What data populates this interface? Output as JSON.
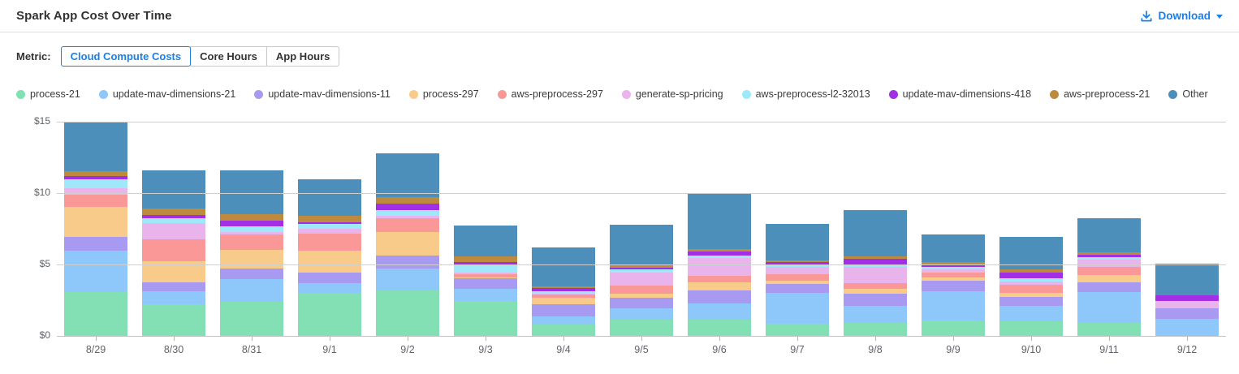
{
  "header": {
    "title": "Spark App Cost Over Time",
    "download_label": "Download"
  },
  "metric": {
    "label": "Metric:",
    "options": [
      {
        "label": "Cloud Compute Costs",
        "selected": true
      },
      {
        "label": "Core Hours",
        "selected": false
      },
      {
        "label": "App Hours",
        "selected": false
      }
    ]
  },
  "colors": {
    "accent": "#1c7fe8",
    "text": "#333333",
    "axis_text": "#5f6368",
    "gridline": "#cfcfcf",
    "divider": "#dedede"
  },
  "chart_data": {
    "type": "bar",
    "stacked": true,
    "title": "Spark App Cost Over Time",
    "xlabel": "",
    "ylabel": "",
    "ylim": [
      0,
      15
    ],
    "grid": true,
    "legend_position": "top",
    "y_ticks": [
      {
        "value": 0,
        "label": "$0"
      },
      {
        "value": 5,
        "label": "$5"
      },
      {
        "value": 10,
        "label": "$10"
      },
      {
        "value": 15,
        "label": "$15"
      }
    ],
    "categories": [
      "8/29",
      "8/30",
      "8/31",
      "9/1",
      "9/2",
      "9/3",
      "9/4",
      "9/5",
      "9/6",
      "9/7",
      "9/8",
      "9/9",
      "9/10",
      "9/11",
      "9/12"
    ],
    "series": [
      {
        "name": "process-21",
        "color": "#82e0b4",
        "values": [
          3.05,
          2.23,
          2.4,
          3.0,
          3.17,
          2.47,
          0.77,
          1.11,
          1.15,
          0.87,
          0.92,
          1.06,
          1.0,
          0.92,
          0
        ]
      },
      {
        "name": "update-mav-dimensions-21",
        "color": "#8ec7f9",
        "values": [
          2.91,
          0.91,
          1.57,
          0.7,
          1.57,
          0.85,
          0.57,
          0.81,
          1.1,
          2.17,
          1.21,
          2.07,
          1.13,
          2.16,
          1.19
        ]
      },
      {
        "name": "update-mav-dimensions-11",
        "color": "#a89af1",
        "values": [
          1.0,
          0.6,
          0.72,
          0.76,
          0.88,
          0.7,
          0.89,
          0.74,
          0.94,
          0.62,
          0.85,
          0.76,
          0.62,
          0.66,
          0.75
        ]
      },
      {
        "name": "process-297",
        "color": "#f8cb8b",
        "values": [
          2.05,
          1.47,
          1.36,
          1.51,
          1.63,
          0.1,
          0.43,
          0.28,
          0.55,
          0.23,
          0.3,
          0.22,
          0.29,
          0.52,
          0
        ]
      },
      {
        "name": "aws-preprocess-297",
        "color": "#fa9897",
        "values": [
          0.89,
          1.55,
          1.04,
          1.19,
          0.98,
          0.2,
          0.23,
          0.57,
          0.49,
          0.41,
          0.42,
          0.34,
          0.56,
          0.57,
          0
        ]
      },
      {
        "name": "generate-sp-pricing",
        "color": "#e9b4ec",
        "values": [
          0.44,
          1.13,
          0.19,
          0.32,
          0.19,
          0.13,
          0.09,
          0.91,
          1.2,
          0.53,
          1.13,
          0.19,
          0.19,
          0.51,
          0.53
        ]
      },
      {
        "name": "aws-preprocess-l2-32013",
        "color": "#9ee8fa",
        "values": [
          0.62,
          0.37,
          0.38,
          0.34,
          0.37,
          0.58,
          0.13,
          0.22,
          0.19,
          0.15,
          0.15,
          0.19,
          0.23,
          0.19,
          0
        ]
      },
      {
        "name": "update-mav-dimensions-418",
        "color": "#a22ee6",
        "values": [
          0.26,
          0.19,
          0.42,
          0.13,
          0.47,
          0.13,
          0.25,
          0.15,
          0.3,
          0.17,
          0.42,
          0.19,
          0.4,
          0.15,
          0.38
        ]
      },
      {
        "name": "aws-preprocess-21",
        "color": "#be8b3e",
        "values": [
          0.34,
          0.47,
          0.43,
          0.44,
          0.48,
          0.44,
          0.13,
          0.19,
          0.19,
          0.15,
          0.18,
          0.15,
          0.22,
          0.19,
          0
        ]
      },
      {
        "name": "Other",
        "color": "#4d8fbb",
        "values": [
          3.44,
          2.66,
          3.07,
          2.58,
          3.05,
          2.15,
          2.72,
          2.83,
          3.87,
          2.55,
          3.25,
          1.92,
          2.27,
          2.39,
          2.2
        ]
      }
    ]
  }
}
